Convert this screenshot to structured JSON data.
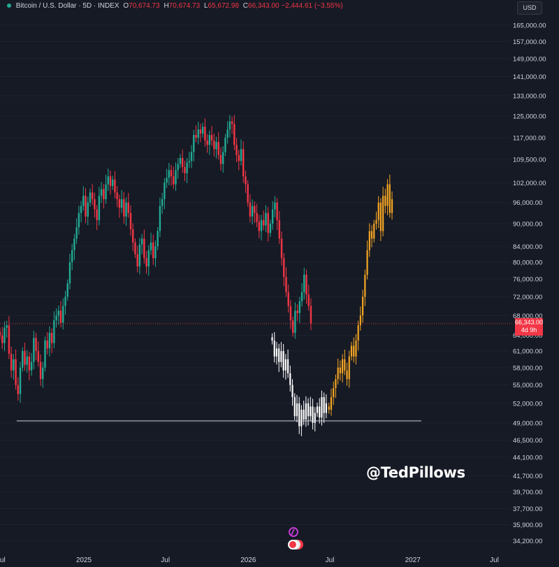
{
  "header": {
    "symbol": "Bitcoin / U.S. Dollar · 5D · INDEX",
    "open_label": "O",
    "open": "70,674.73",
    "high_label": "H",
    "high": "70,674.73",
    "low_label": "L",
    "low": "65,672.98",
    "close_label": "C",
    "close": "66,343.00",
    "change": "−2,444.61 (−3.55%)"
  },
  "currency_button": "USD",
  "price_tag": {
    "price": "66,343.00",
    "countdown": "4d 9h"
  },
  "watermark": "@TedPillows",
  "icons": [
    "lightning-icon",
    "us-flag-icon"
  ],
  "colors": {
    "background": "#161a25",
    "up": "#22ab94",
    "down": "#f23645",
    "projection_down": "#ffffff",
    "projection_up": "#f5a623",
    "support_line": "#cfd2d8"
  },
  "chart_data": {
    "type": "candlestick",
    "title": "Bitcoin / U.S. Dollar · 5D · INDEX",
    "y_scale": "log",
    "ylim": [
      33000,
      170000
    ],
    "yticks": [
      165000,
      157000,
      149000,
      141000,
      133000,
      125000,
      117000,
      109500,
      102000,
      96000,
      90000,
      84000,
      80000,
      76000,
      72000,
      68000,
      64000,
      61000,
      58000,
      55000,
      52000,
      49000,
      46500,
      44100,
      41700,
      39700,
      37700,
      35900,
      34200
    ],
    "ytick_labels": [
      "165,000.00",
      "157,000.00",
      "149,000.00",
      "141,000.00",
      "133,000.00",
      "125,000.00",
      "117,000.00",
      "109,500.00",
      "102,000.00",
      "96,000.00",
      "90,000.00",
      "84,000.00",
      "80,000.00",
      "76,000.00",
      "72,000.00",
      "68,000.00",
      "64,000.00",
      "61,000.00",
      "58,000.00",
      "55,000.00",
      "52,000.00",
      "49,000.00",
      "46,500.00",
      "44,100.00",
      "41,700.00",
      "39,700.00",
      "37,700.00",
      "35,900.00",
      "34,200.00"
    ],
    "xlim": [
      "2024-06-29",
      "2027-08-05"
    ],
    "x_ticks": [
      "2024-07-01",
      "2025-01-01",
      "2025-07-01",
      "2026-01-01",
      "2026-07-01",
      "2027-01-01",
      "2027-07-01"
    ],
    "x_tick_labels": [
      "Jul",
      "2025",
      "Jul",
      "2026",
      "Jul",
      "2027",
      "Jul"
    ],
    "current_price": 66343,
    "support_level": 49300,
    "support_range": [
      "2024-08-05",
      "2027-01-20"
    ],
    "series": [
      {
        "role": "history",
        "start": "2024-06-29",
        "interval_days": 5,
        "close": [
          64000,
          62500,
          65500,
          66000,
          60500,
          57500,
          59500,
          55000,
          53500,
          58000,
          61000,
          58500,
          60000,
          57500,
          59000,
          63500,
          61000,
          59000,
          56000,
          58000,
          63000,
          61500,
          64500,
          62500,
          67000,
          68000,
          69000,
          66500,
          70000,
          72000,
          75000,
          80000,
          83000,
          86000,
          89000,
          93000,
          95000,
          98000,
          92000,
          96000,
          99000,
          97000,
          94000,
          91000,
          98000,
          100000,
          97000,
          101500,
          104000,
          101000,
          103000,
          99000,
          97000,
          94500,
          97000,
          92000,
          96000,
          93000,
          88500,
          85000,
          82000,
          79000,
          84500,
          86000,
          81000,
          79000,
          83000,
          85000,
          81000,
          84000,
          88000,
          95000,
          97000,
          102000,
          103500,
          106000,
          104000,
          101500,
          106000,
          108000,
          110000,
          107000,
          105000,
          108500,
          109000,
          112000,
          118000,
          117000,
          120000,
          118500,
          121000,
          116000,
          114500,
          118000,
          116000,
          113000,
          115500,
          111000,
          108000,
          112000,
          117000,
          120000,
          123000,
          122000,
          114500,
          111000,
          109000,
          113000,
          104000,
          101500,
          96000,
          92000,
          95000,
          93000,
          90500,
          88000,
          91000,
          89500,
          93000,
          87500,
          90000,
          94000,
          96000,
          91000,
          86000,
          81000,
          76500,
          73000,
          70000,
          67000,
          64500,
          69000,
          68500,
          71000,
          73000,
          77000,
          72500,
          70000,
          66343
        ]
      },
      {
        "role": "projection-down",
        "start": "2026-02-23",
        "interval_days": 5,
        "close": [
          63000,
          60000,
          61500,
          59000,
          61000,
          57500,
          59500,
          57000,
          55000,
          53000,
          50000,
          52000,
          48500,
          51000,
          49500,
          52000,
          50000,
          51500,
          49000,
          50500,
          51500,
          49800,
          53000,
          50500,
          52000
        ]
      },
      {
        "role": "projection-up",
        "start": "2026-06-29",
        "interval_days": 5,
        "close": [
          51000,
          53000,
          54500,
          56000,
          58000,
          57000,
          59500,
          57500,
          56000,
          60000,
          62000,
          60000,
          63000,
          66000,
          68000,
          72000,
          77000,
          83000,
          88000,
          86000,
          90000,
          91000,
          96000,
          88000,
          98000,
          95000,
          101500,
          93000,
          97000
        ]
      }
    ]
  }
}
